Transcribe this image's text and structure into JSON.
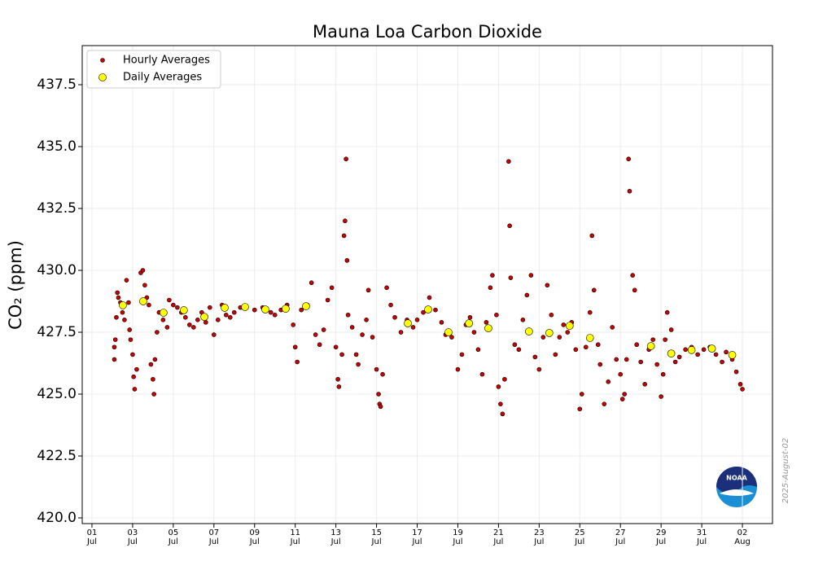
{
  "chart_data": {
    "type": "scatter",
    "title": "Mauna Loa Carbon Dioxide",
    "y_label": "CO₂ (ppm)",
    "xlim": [
      0.52,
      34.48
    ],
    "ylim": [
      419.77,
      439.08
    ],
    "xticks": [
      {
        "value": 1,
        "label": "01\nJul"
      },
      {
        "value": 3,
        "label": "03\nJul"
      },
      {
        "value": 5,
        "label": "05\nJul"
      },
      {
        "value": 7,
        "label": "07\nJul"
      },
      {
        "value": 9,
        "label": "09\nJul"
      },
      {
        "value": 11,
        "label": "11\nJul"
      },
      {
        "value": 13,
        "label": "13\nJul"
      },
      {
        "value": 15,
        "label": "15\nJul"
      },
      {
        "value": 17,
        "label": "17\nJul"
      },
      {
        "value": 19,
        "label": "19\nJul"
      },
      {
        "value": 21,
        "label": "21\nJul"
      },
      {
        "value": 23,
        "label": "23\nJul"
      },
      {
        "value": 25,
        "label": "25\nJul"
      },
      {
        "value": 27,
        "label": "27\nJul"
      },
      {
        "value": 29,
        "label": "29\nJul"
      },
      {
        "value": 31,
        "label": "31\nJul"
      },
      {
        "value": 33,
        "label": "02\nAug"
      }
    ],
    "yticks": [
      {
        "value": 420,
        "label": "420.0"
      },
      {
        "value": 422.5,
        "label": "422.5"
      },
      {
        "value": 425,
        "label": "425.0"
      },
      {
        "value": 427.5,
        "label": "427.5"
      },
      {
        "value": 430,
        "label": "430.0"
      },
      {
        "value": 432.5,
        "label": "432.5"
      },
      {
        "value": 435,
        "label": "435.0"
      },
      {
        "value": 437.5,
        "label": "437.5"
      }
    ],
    "grid": true,
    "legend": "upper left",
    "date_stamp": "2025-August-02",
    "logo_text": "NOAA",
    "series": [
      {
        "name": "Hourly Averages",
        "color": "#cc0000",
        "x": [
          2.1,
          2.1,
          2.15,
          2.2,
          2.25,
          2.3,
          2.4,
          2.5,
          2.6,
          2.7,
          2.8,
          2.85,
          2.9,
          3.0,
          3.05,
          3.1,
          3.2,
          3.4,
          3.5,
          3.6,
          3.7,
          3.8,
          3.9,
          4.0,
          4.05,
          4.1,
          4.2,
          4.3,
          4.5,
          4.7,
          4.8,
          5.0,
          5.2,
          5.4,
          5.6,
          5.8,
          6.0,
          6.2,
          6.4,
          6.6,
          6.8,
          7.0,
          7.2,
          7.4,
          7.6,
          7.8,
          8.0,
          8.3,
          8.6,
          9.0,
          9.4,
          9.8,
          10.0,
          10.3,
          10.6,
          10.9,
          11.0,
          11.1,
          11.3,
          11.6,
          11.8,
          12.0,
          12.2,
          12.4,
          12.6,
          12.8,
          13.0,
          13.1,
          13.15,
          13.3,
          13.4,
          13.45,
          13.5,
          13.55,
          13.6,
          13.8,
          14.0,
          14.1,
          14.3,
          14.5,
          14.6,
          14.8,
          15.0,
          15.1,
          15.15,
          15.2,
          15.3,
          15.5,
          15.7,
          15.9,
          16.2,
          16.5,
          16.8,
          17.0,
          17.3,
          17.6,
          17.9,
          18.2,
          18.4,
          18.7,
          19.0,
          19.2,
          19.4,
          19.6,
          19.8,
          20.0,
          20.2,
          20.4,
          20.6,
          20.7,
          20.9,
          21.0,
          21.1,
          21.2,
          21.3,
          21.5,
          21.55,
          21.6,
          21.8,
          22.0,
          22.2,
          22.4,
          22.6,
          22.8,
          23.0,
          23.2,
          23.4,
          23.6,
          23.8,
          24.0,
          24.2,
          24.4,
          24.6,
          24.8,
          25.0,
          25.1,
          25.3,
          25.5,
          25.6,
          25.7,
          25.9,
          26.0,
          26.2,
          26.4,
          26.6,
          26.8,
          27.0,
          27.1,
          27.2,
          27.3,
          27.4,
          27.45,
          27.6,
          27.7,
          27.8,
          28.0,
          28.2,
          28.4,
          28.6,
          28.8,
          29.0,
          29.1,
          29.2,
          29.3,
          29.5,
          29.7,
          29.9,
          30.2,
          30.5,
          30.8,
          31.1,
          31.4,
          31.7,
          32.0,
          32.2,
          32.5,
          32.7,
          32.9,
          33.0
        ],
        "values": [
          426.4,
          426.9,
          427.2,
          428.1,
          429.1,
          428.9,
          428.7,
          428.3,
          428.0,
          429.6,
          428.7,
          427.6,
          427.2,
          426.6,
          425.7,
          425.2,
          426.0,
          429.9,
          430.0,
          429.4,
          428.9,
          428.6,
          426.2,
          425.6,
          425.0,
          426.4,
          427.5,
          428.3,
          428.0,
          427.7,
          428.8,
          428.6,
          428.5,
          428.3,
          428.1,
          427.8,
          427.7,
          428.0,
          428.3,
          427.9,
          428.5,
          427.4,
          428.0,
          428.6,
          428.2,
          428.1,
          428.3,
          428.5,
          428.5,
          428.4,
          428.5,
          428.3,
          428.2,
          428.4,
          428.6,
          427.8,
          426.9,
          426.3,
          428.4,
          428.6,
          429.5,
          427.4,
          427.0,
          427.6,
          428.8,
          429.3,
          426.9,
          425.6,
          425.3,
          426.6,
          431.4,
          432.0,
          434.5,
          430.4,
          428.2,
          427.7,
          426.6,
          426.2,
          427.4,
          428.0,
          429.2,
          427.3,
          426.0,
          425.0,
          424.6,
          424.5,
          425.8,
          429.3,
          428.6,
          428.1,
          427.5,
          428.0,
          427.7,
          428.0,
          428.3,
          428.9,
          428.4,
          427.9,
          427.4,
          427.3,
          426.0,
          426.6,
          427.8,
          428.1,
          427.5,
          426.8,
          425.8,
          427.9,
          429.3,
          429.8,
          428.2,
          425.3,
          424.6,
          424.2,
          425.6,
          434.4,
          431.8,
          429.7,
          427.0,
          426.8,
          428.0,
          429.0,
          429.8,
          426.5,
          426.0,
          427.3,
          429.4,
          428.2,
          426.6,
          427.3,
          427.8,
          427.5,
          427.9,
          426.8,
          424.4,
          425.0,
          426.9,
          428.3,
          431.4,
          429.2,
          427.0,
          426.2,
          424.6,
          425.5,
          427.7,
          426.4,
          425.8,
          424.8,
          425.0,
          426.4,
          434.5,
          433.2,
          429.8,
          429.2,
          427.0,
          426.3,
          425.4,
          426.8,
          427.2,
          426.2,
          424.9,
          425.8,
          427.2,
          428.3,
          427.6,
          426.3,
          426.5,
          426.8,
          426.9,
          426.6,
          426.8,
          426.9,
          426.6,
          426.3,
          426.7,
          426.4,
          425.9,
          425.4,
          425.2
        ]
      },
      {
        "name": "Daily Averages",
        "color": "#ffff00",
        "x": [
          2.52,
          3.52,
          4.52,
          5.52,
          6.53,
          7.53,
          8.53,
          9.53,
          10.53,
          11.53,
          16.54,
          17.54,
          18.54,
          19.55,
          20.5,
          22.5,
          23.5,
          24.5,
          25.5,
          28.5,
          29.5,
          30.5,
          31.5,
          32.5
        ],
        "values": [
          428.59,
          428.75,
          428.29,
          428.39,
          428.12,
          428.49,
          428.52,
          428.42,
          428.45,
          428.55,
          427.86,
          428.42,
          427.5,
          427.86,
          427.66,
          427.53,
          427.47,
          427.76,
          427.27,
          426.94,
          426.64,
          426.78,
          426.84,
          426.58
        ]
      }
    ]
  }
}
